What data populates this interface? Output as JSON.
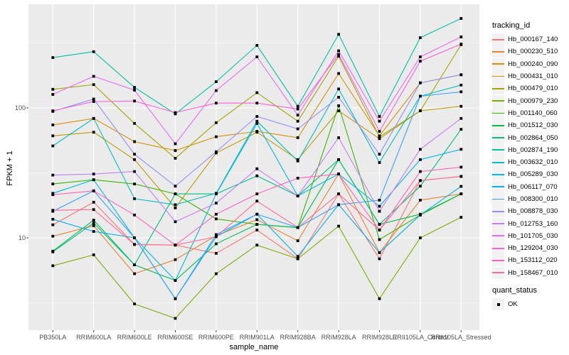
{
  "chart_data": {
    "type": "line",
    "title": "",
    "xlabel": "sample_name",
    "ylabel": "FPKM + 1",
    "y_scale": "log10",
    "ylim": [
      1.95,
      630
    ],
    "grid": "on",
    "panel_background": "#EBEBEB",
    "gridline_color": "#FFFFFF",
    "axis_text_color": "#4d4d4d",
    "tick_mark_color": "#333333",
    "point_color": "#000000",
    "point_shape": "square",
    "y_major_ticks": [
      {
        "label": "100",
        "value": 100
      },
      {
        "label": "10",
        "value": 10
      }
    ],
    "y_minor_values": [
      316.23,
      31.623,
      3.1623
    ],
    "categories": [
      "PB350LA",
      "RRIM600LA",
      "RRIM600LE",
      "RRIM600SE",
      "RRIM600PE",
      "RRIM901LA",
      "RRIM928BA",
      "RRIM928LA",
      "RRIM928LE",
      "RRII105LA_Control",
      "RRII105LA_Stressed"
    ],
    "legend": {
      "series_title": "tracking_id",
      "shape_title": "quant_status",
      "shape_items": [
        {
          "label": "OK",
          "marker": "black-square"
        }
      ]
    },
    "series": [
      {
        "name": "Hb_000167_140",
        "color": "#F8766D",
        "values": [
          12.6,
          18.8,
          8.9,
          8.8,
          7.6,
          11.5,
          6.9,
          21.8,
          6.9,
          27.6,
          29.7
        ]
      },
      {
        "name": "Hb_000230_510",
        "color": "#EA8331",
        "values": [
          10.3,
          12.4,
          5.3,
          6.8,
          10.4,
          13.8,
          9.5,
          31,
          7.7,
          19.5,
          21.8
        ]
      },
      {
        "name": "Hb_000240_090",
        "color": "#D89000",
        "values": [
          74,
          83,
          55,
          47,
          60,
          66,
          59,
          184,
          61,
          156,
          180
        ]
      },
      {
        "name": "Hb_000431_010",
        "color": "#C09B00",
        "values": [
          61,
          65,
          40,
          17,
          45,
          65,
          40,
          95,
          58,
          95,
          103
        ]
      },
      {
        "name": "Hb_000479_010",
        "color": "#A3A500",
        "values": [
          139,
          151,
          76,
          41,
          77,
          131,
          79,
          250,
          60,
          95,
          307
        ]
      },
      {
        "name": "Hb_000979_230",
        "color": "#7CAE00",
        "values": [
          6.1,
          7.4,
          3.1,
          2.4,
          5.3,
          8.8,
          6.9,
          12.3,
          3.4,
          10,
          14.4
        ]
      },
      {
        "name": "Hb_001140_060",
        "color": "#39B600",
        "values": [
          26,
          28,
          26,
          21.8,
          14,
          12.7,
          12,
          104,
          9.7,
          15,
          21.8
        ]
      },
      {
        "name": "Hb_001512_030",
        "color": "#00BB4E",
        "values": [
          7.9,
          13.7,
          6.2,
          4.7,
          9,
          12.7,
          12,
          40,
          12.7,
          15.2,
          21.8
        ]
      },
      {
        "name": "Hb_002864_050",
        "color": "#00BF7D",
        "values": [
          7.8,
          13,
          6.2,
          21.8,
          21.8,
          30,
          21,
          40,
          12.7,
          25,
          68.5
        ]
      },
      {
        "name": "Hb_002874_190",
        "color": "#00C1A3",
        "values": [
          244,
          271,
          144,
          90,
          159,
          303,
          103,
          368,
          86,
          347,
          488
        ]
      },
      {
        "name": "Hb_003632_010",
        "color": "#00BFC4",
        "values": [
          51,
          83,
          20,
          18,
          22,
          79,
          39,
          140,
          38,
          123,
          150
        ]
      },
      {
        "name": "Hb_005289_030",
        "color": "#00BAE0",
        "values": [
          22,
          28,
          10,
          4.7,
          21.8,
          76,
          21,
          31,
          17.5,
          40,
          48
        ]
      },
      {
        "name": "Hb_006117_070",
        "color": "#00B0F6",
        "values": [
          13.9,
          11.2,
          10,
          3.4,
          10.2,
          15.2,
          7.2,
          18,
          7.7,
          15,
          24.9
        ]
      },
      {
        "name": "Hb_008300_010",
        "color": "#35A2FF",
        "values": [
          16,
          23,
          10,
          3.4,
          10.6,
          15.2,
          12,
          18,
          19.5,
          123,
          133
        ]
      },
      {
        "name": "Hb_008878_030",
        "color": "#9590FF",
        "values": [
          94,
          117,
          44,
          25,
          46,
          86,
          69,
          121,
          44,
          156,
          180
        ]
      },
      {
        "name": "Hb_012753_160",
        "color": "#C77CFF",
        "values": [
          30.4,
          31,
          32.4,
          13.3,
          18.5,
          34,
          21,
          59,
          16,
          48,
          83
        ]
      },
      {
        "name": "Hb_101705_030",
        "color": "#E76BF3",
        "values": [
          127,
          175,
          137,
          53,
          136,
          247,
          88,
          275,
          79,
          247,
          352
        ]
      },
      {
        "name": "Hb_129204_030",
        "color": "#FA62DB",
        "values": [
          95,
          112,
          113,
          92,
          109,
          109,
          98,
          258,
          66,
          229,
          310
        ]
      },
      {
        "name": "Hb_153112_020",
        "color": "#FF62BC",
        "values": [
          21.5,
          23,
          15,
          8.8,
          15.2,
          21.8,
          28.8,
          31,
          11.5,
          32.4,
          35
        ]
      },
      {
        "name": "Hb_158467_010",
        "color": "#FF6A98",
        "values": [
          16.3,
          16.5,
          8.9,
          8.8,
          10.2,
          19.2,
          12,
          21.8,
          11.5,
          27.6,
          29.7
        ]
      }
    ]
  }
}
